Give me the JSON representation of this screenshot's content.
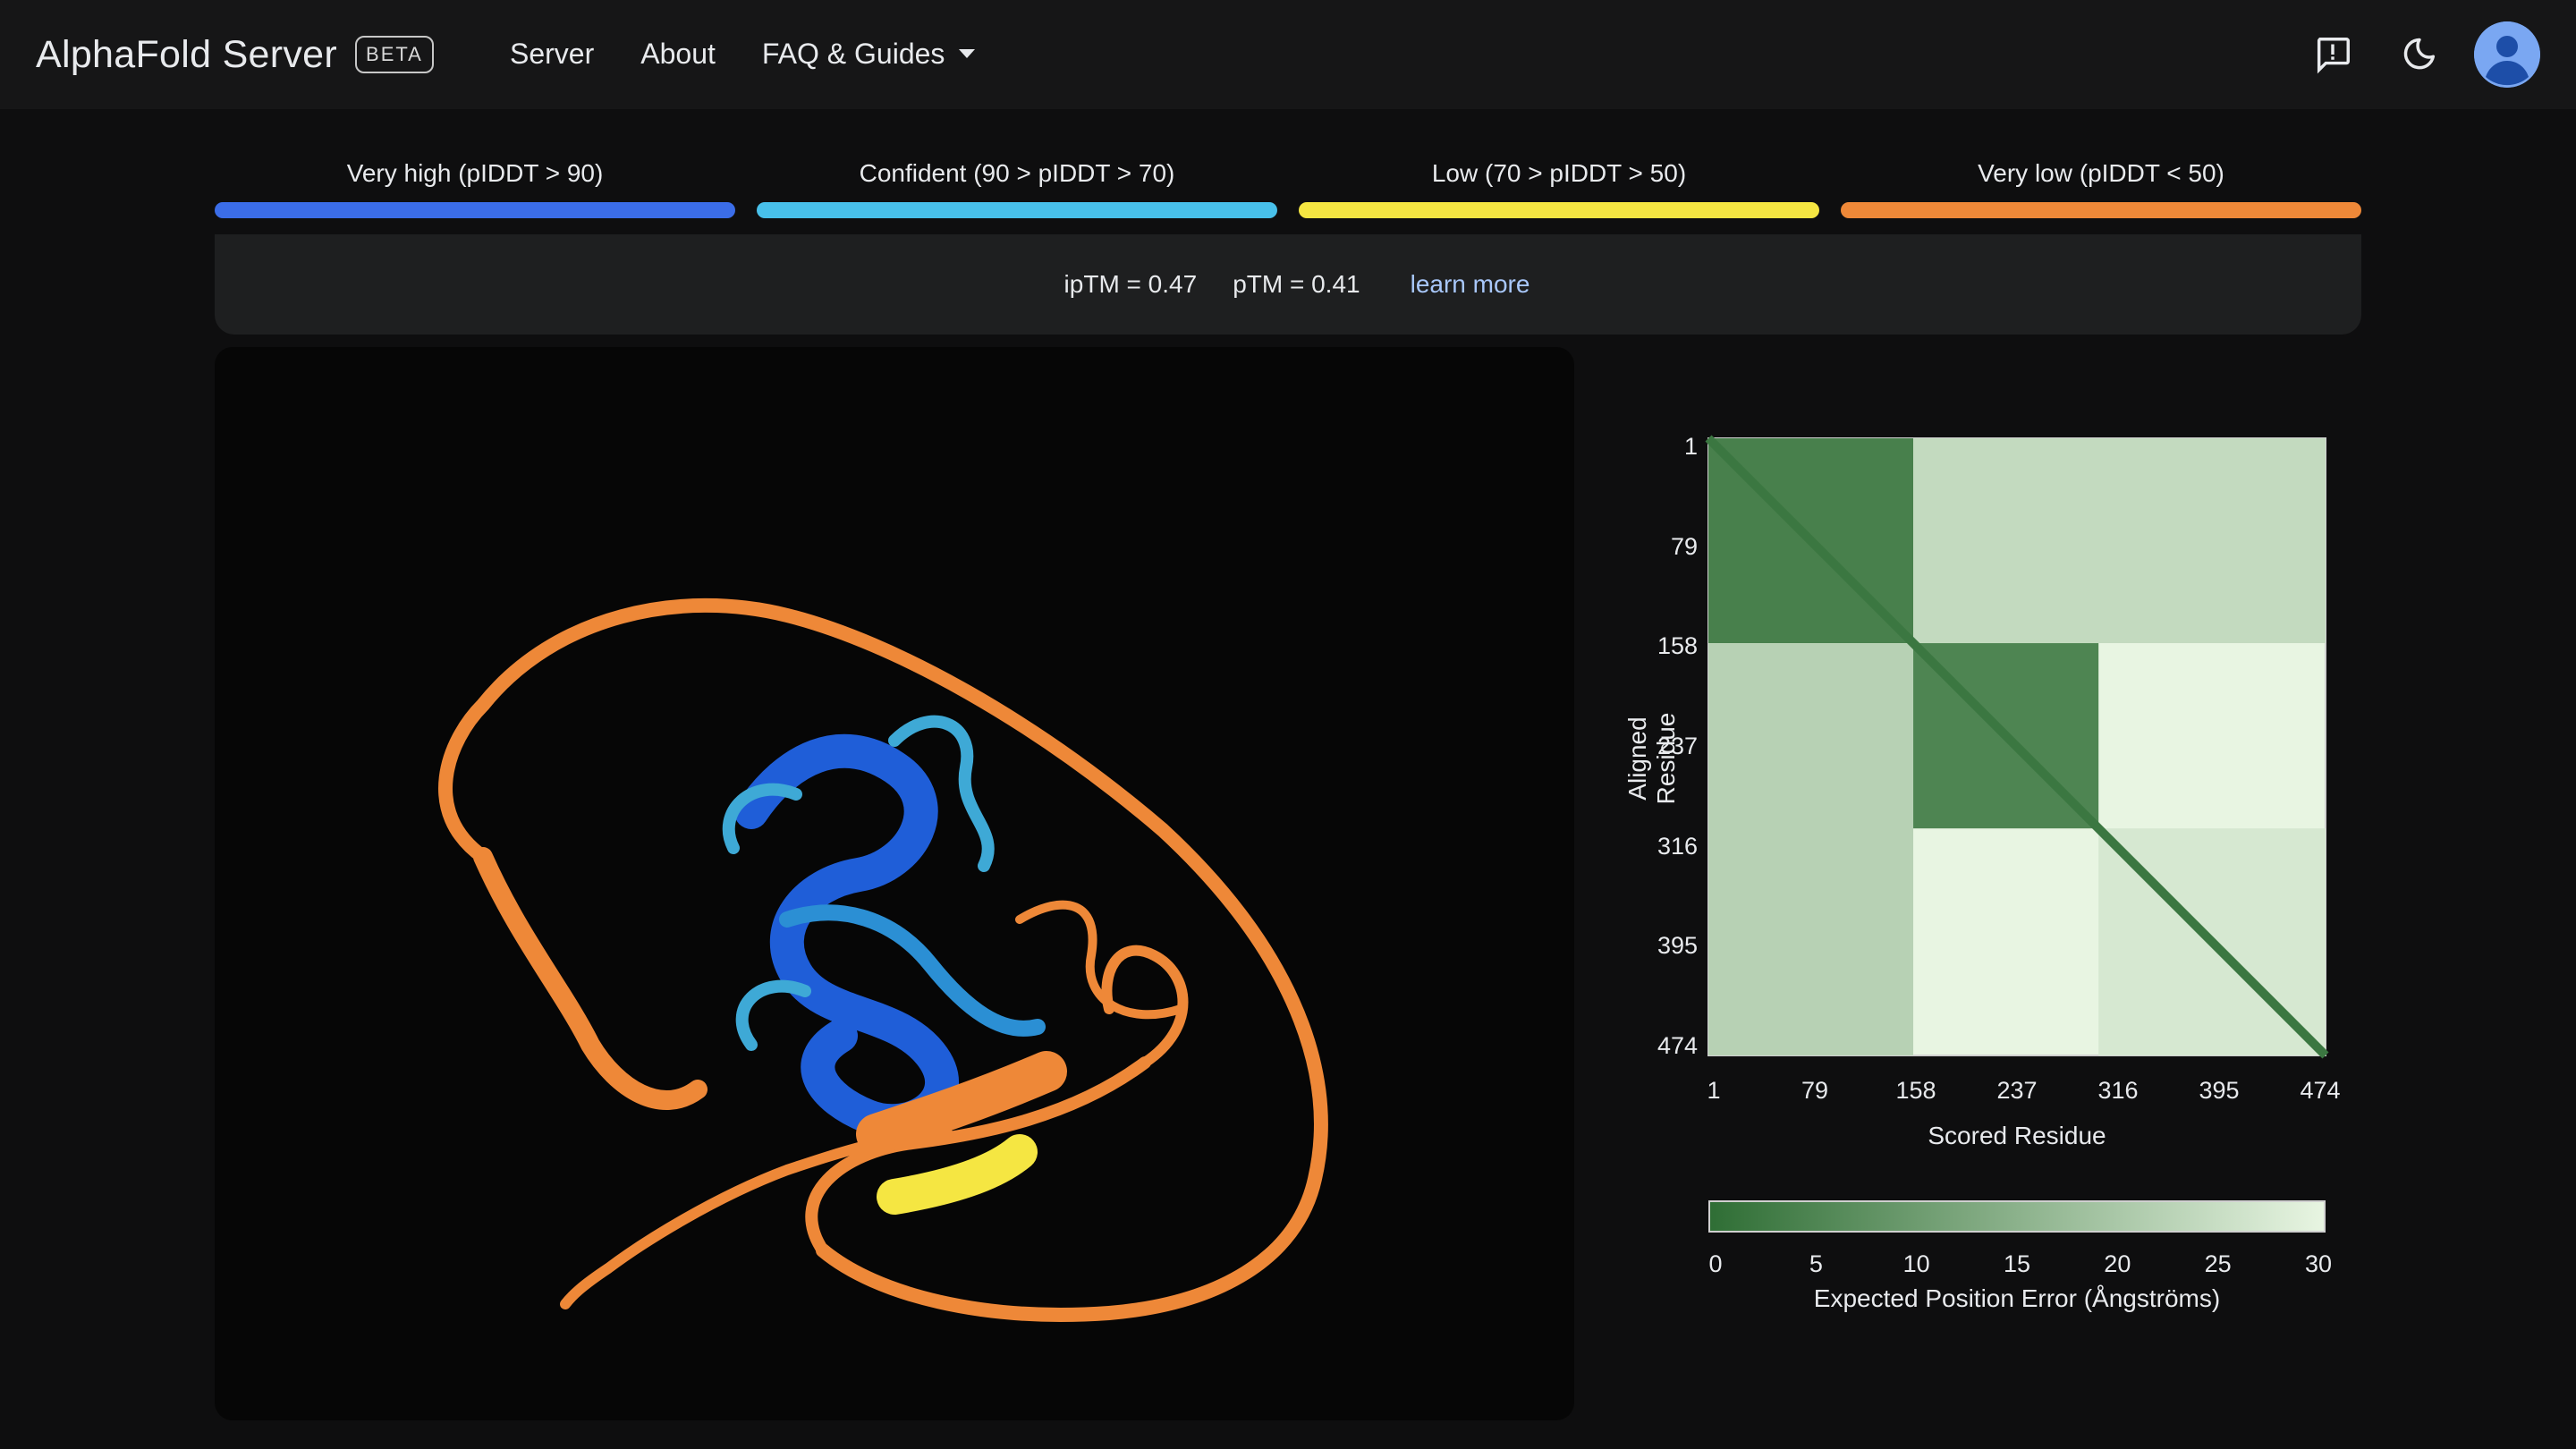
{
  "header": {
    "brand": "AlphaFold Server",
    "beta_badge": "BETA",
    "nav": [
      {
        "label": "Server"
      },
      {
        "label": "About"
      },
      {
        "label": "FAQ & Guides"
      }
    ],
    "icons": [
      "feedback-icon",
      "dark-mode-icon",
      "account-avatar"
    ]
  },
  "confidence_legend": [
    {
      "label": "Very high (pIDDT > 90)",
      "color": "#3b6de8"
    },
    {
      "label": "Confident (90 > pIDDT > 70)",
      "color": "#48c0ea"
    },
    {
      "label": "Low (70 > pIDDT > 50)",
      "color": "#f5e642"
    },
    {
      "label": "Very low (pIDDT < 50)",
      "color": "#ee8838"
    }
  ],
  "scores": {
    "iptm": "ipTM = 0.47",
    "ptm": "pTM = 0.41",
    "learn_more": "learn more"
  },
  "chart_data": {
    "type": "heatmap",
    "title": "",
    "xlabel": "Scored Residue",
    "ylabel": "Aligned Residue",
    "x_ticks": [
      "1",
      "79",
      "158",
      "237",
      "316",
      "395",
      "474"
    ],
    "y_ticks": [
      "1",
      "79",
      "158",
      "237",
      "316",
      "395",
      "474"
    ],
    "x_range": [
      1,
      474
    ],
    "y_range": [
      1,
      474
    ],
    "colorbar": {
      "label": "Expected Position Error (Ångströms)",
      "ticks": [
        "0",
        "5",
        "10",
        "15",
        "20",
        "25",
        "30"
      ],
      "range": [
        0,
        30
      ],
      "color_low": "#2f6e35",
      "color_high": "#e8f5e2"
    },
    "blocks": [
      {
        "x": [
          1,
          158
        ],
        "y": [
          1,
          158
        ],
        "value": 4
      },
      {
        "x": [
          158,
          300
        ],
        "y": [
          158,
          300
        ],
        "value": 5
      },
      {
        "x": [
          1,
          158
        ],
        "y": [
          158,
          474
        ],
        "value": 22
      },
      {
        "x": [
          158,
          474
        ],
        "y": [
          1,
          158
        ],
        "value": 24
      },
      {
        "x": [
          300,
          474
        ],
        "y": [
          300,
          474
        ],
        "value": 27
      }
    ],
    "diagonal_value": 2
  }
}
